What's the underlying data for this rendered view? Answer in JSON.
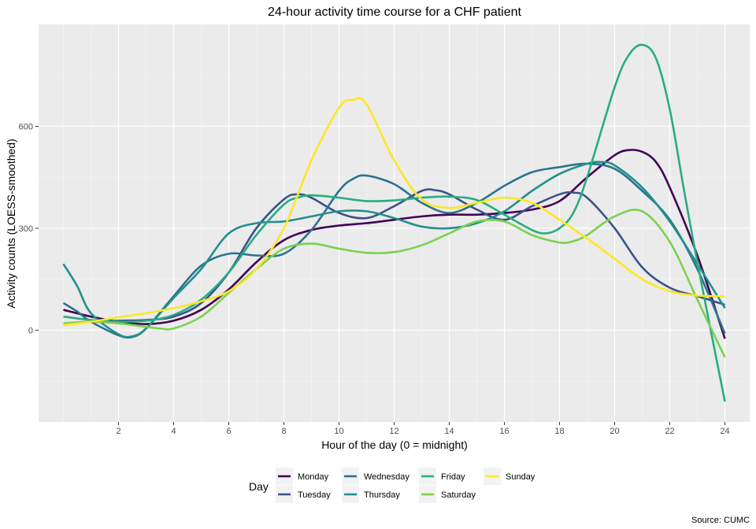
{
  "chart_data": {
    "type": "line",
    "title": "24-hour activity time course for a CHF patient",
    "xlabel": "Hour of the day (0 = midnight)",
    "ylabel": "Activity counts (LOESS-smoothed)",
    "caption": "Source: CUMC",
    "xlim": [
      -0.9,
      24.9
    ],
    "ylim": [
      -270,
      900
    ],
    "x_ticks": [
      2,
      4,
      6,
      8,
      10,
      12,
      14,
      16,
      18,
      20,
      22,
      24
    ],
    "y_ticks": [
      0,
      300,
      600
    ],
    "grid": true,
    "legend_position": "bottom",
    "legend_title": "Day",
    "series": [
      {
        "name": "Monday",
        "color": "#440154",
        "x": [
          0,
          1,
          2,
          3,
          4,
          5,
          6,
          7,
          8,
          9,
          10,
          11,
          12,
          13,
          14,
          15,
          16,
          17,
          18,
          19,
          20,
          20.5,
          21,
          21.5,
          22,
          23,
          24
        ],
        "values": [
          60,
          40,
          25,
          18,
          28,
          60,
          120,
          200,
          265,
          295,
          308,
          315,
          325,
          335,
          340,
          340,
          345,
          355,
          380,
          450,
          515,
          530,
          525,
          495,
          420,
          220,
          -25
        ]
      },
      {
        "name": "Tuesday",
        "color": "#3B528B",
        "x": [
          0,
          1,
          2,
          3,
          4,
          5,
          6,
          7,
          8,
          8.5,
          9,
          10,
          11,
          12,
          13,
          13.5,
          14,
          15,
          16,
          17,
          18,
          18.5,
          19,
          20,
          21,
          22,
          23,
          24
        ],
        "values": [
          20,
          25,
          28,
          30,
          40,
          80,
          170,
          300,
          385,
          400,
          390,
          345,
          330,
          365,
          410,
          412,
          400,
          355,
          325,
          365,
          400,
          405,
          390,
          300,
          185,
          125,
          100,
          75
        ]
      },
      {
        "name": "Wednesday",
        "color": "#2C728E",
        "x": [
          0,
          0.5,
          1,
          2,
          2.5,
          3,
          4,
          5,
          6,
          7,
          8,
          9,
          10,
          10.5,
          11,
          12,
          13,
          14,
          15,
          16,
          17,
          18,
          19,
          20,
          21,
          22,
          23,
          24
        ],
        "values": [
          80,
          55,
          25,
          -15,
          -20,
          5,
          100,
          190,
          225,
          220,
          225,
          295,
          410,
          445,
          455,
          430,
          375,
          345,
          375,
          425,
          465,
          480,
          490,
          475,
          410,
          325,
          180,
          -10
        ]
      },
      {
        "name": "Thursday",
        "color": "#21908C",
        "x": [
          0,
          0.5,
          1,
          2,
          2.5,
          3,
          4,
          5,
          6,
          7,
          8,
          9,
          10,
          11,
          12,
          13,
          14,
          15,
          16,
          17,
          18,
          19,
          19.5,
          20,
          21,
          22,
          23,
          24
        ],
        "values": [
          195,
          130,
          50,
          -12,
          -18,
          5,
          95,
          180,
          285,
          315,
          320,
          335,
          350,
          350,
          330,
          305,
          300,
          315,
          350,
          410,
          460,
          490,
          495,
          485,
          420,
          320,
          195,
          65
        ]
      },
      {
        "name": "Friday",
        "color": "#27AD81",
        "x": [
          0,
          1,
          2,
          3,
          4,
          5,
          6,
          7,
          8,
          8.5,
          9,
          10,
          11,
          12,
          13,
          14,
          15,
          16,
          17,
          17.5,
          18,
          18.5,
          19,
          20,
          20.5,
          21,
          21.5,
          22,
          22.5,
          23,
          24
        ],
        "values": [
          40,
          30,
          25,
          28,
          45,
          90,
          170,
          280,
          370,
          390,
          397,
          390,
          380,
          382,
          390,
          393,
          383,
          340,
          295,
          285,
          300,
          345,
          450,
          715,
          808,
          840,
          800,
          650,
          420,
          200,
          -210
        ]
      },
      {
        "name": "Saturday",
        "color": "#7AD151",
        "x": [
          0,
          1,
          2,
          3,
          3.5,
          4,
          5,
          6,
          7,
          8,
          9,
          10,
          11,
          12,
          13,
          14,
          15,
          16,
          17,
          18,
          18.5,
          19,
          20,
          21,
          22,
          23,
          24
        ],
        "values": [
          20,
          25,
          20,
          10,
          5,
          5,
          40,
          110,
          180,
          240,
          255,
          240,
          228,
          230,
          250,
          285,
          320,
          320,
          280,
          258,
          262,
          280,
          335,
          350,
          260,
          90,
          -80
        ]
      },
      {
        "name": "Sunday",
        "color": "#FDE725",
        "x": [
          0,
          1,
          2,
          3,
          4,
          5,
          6,
          7,
          8,
          9,
          10,
          10.5,
          11,
          12,
          13,
          14,
          15,
          16,
          17,
          18,
          19,
          20,
          21,
          22,
          23,
          24
        ],
        "values": [
          15,
          25,
          38,
          50,
          65,
          85,
          115,
          180,
          300,
          500,
          655,
          678,
          665,
          500,
          385,
          360,
          375,
          390,
          375,
          325,
          270,
          210,
          150,
          115,
          102,
          100
        ]
      }
    ]
  }
}
